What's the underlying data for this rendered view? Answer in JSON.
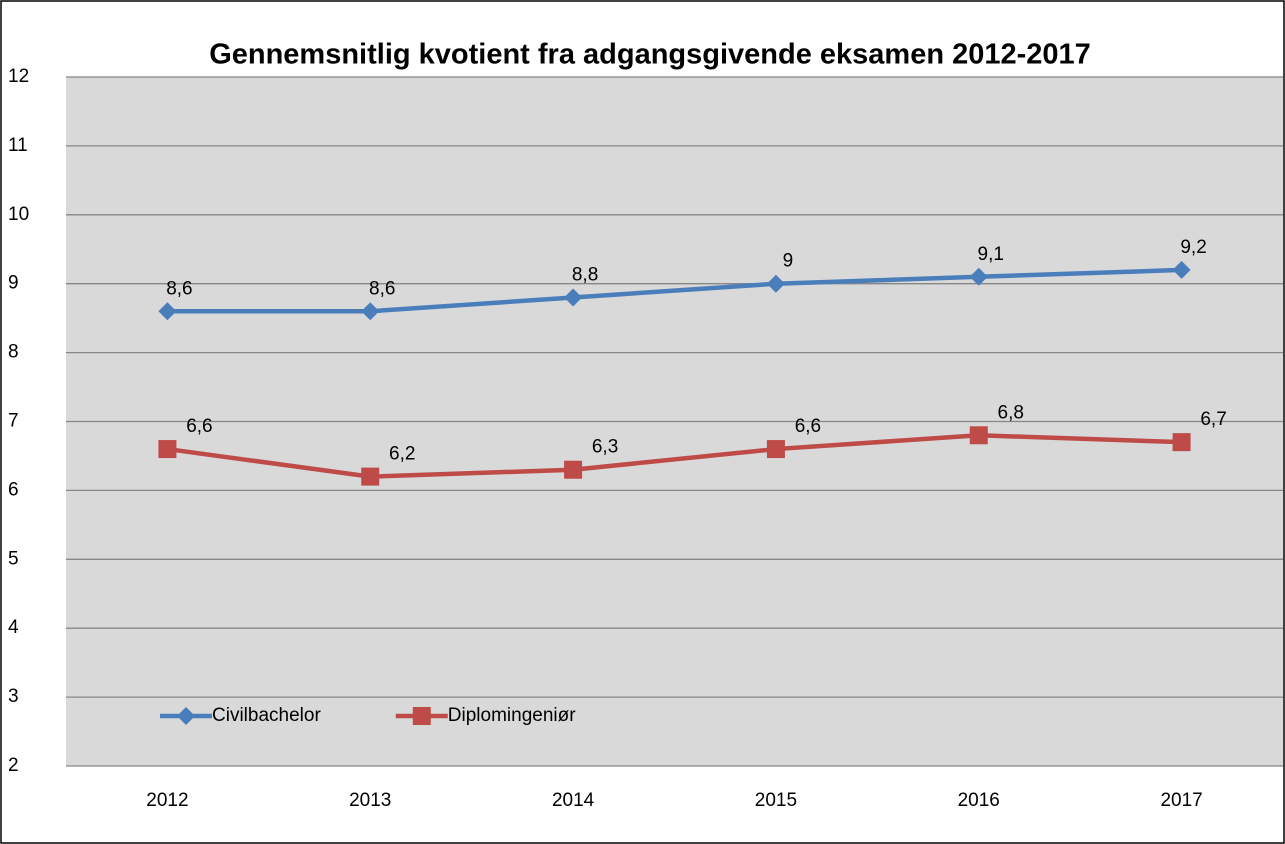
{
  "chart_data": {
    "type": "line",
    "title": "Gennemsnitlig kvotient fra adgangsgivende eksamen 2012-2017",
    "categories": [
      "2012",
      "2013",
      "2014",
      "2015",
      "2016",
      "2017"
    ],
    "series": [
      {
        "name": "Civilbachelor",
        "color": "#4a7ebb",
        "marker": "diamond",
        "values": [
          8.6,
          8.6,
          8.8,
          9,
          9.1,
          9.2
        ],
        "value_labels": [
          "8,6",
          "8,6",
          "8,8",
          "9",
          "9,1",
          "9,2"
        ]
      },
      {
        "name": "Diplomingeniør",
        "color": "#be4b48",
        "marker": "square",
        "values": [
          6.6,
          6.2,
          6.3,
          6.6,
          6.8,
          6.7
        ],
        "value_labels": [
          "6,6",
          "6,2",
          "6,3",
          "6,6",
          "6,8",
          "6,7"
        ]
      }
    ],
    "ylim": [
      2,
      12
    ],
    "yticks": [
      2,
      3,
      4,
      5,
      6,
      7,
      8,
      9,
      10,
      11,
      12
    ],
    "grid": true,
    "legend": "lower left"
  }
}
